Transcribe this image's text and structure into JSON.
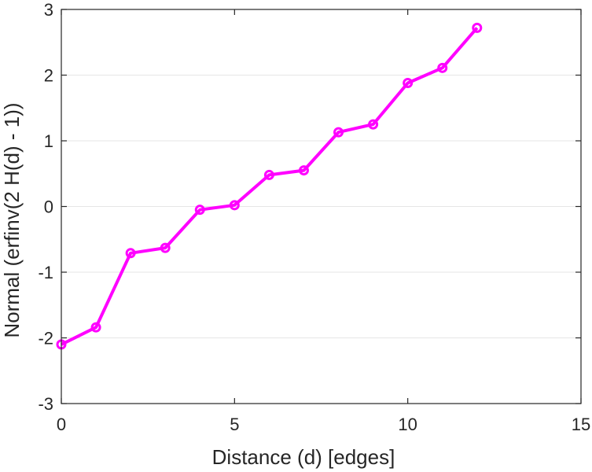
{
  "chart_data": {
    "type": "line",
    "title": "",
    "xlabel": "Distance (d) [edges]",
    "ylabel": "Normal (erfinv(2 H(d) - 1))",
    "xlim": [
      0,
      15
    ],
    "ylim": [
      -3,
      3
    ],
    "xticks": [
      0,
      5,
      10,
      15
    ],
    "yticks": [
      -3,
      -2,
      -1,
      0,
      1,
      2,
      3
    ],
    "grid": "horizontal",
    "legend": "none",
    "series": [
      {
        "color": "#ff00ff",
        "marker": "circle",
        "x": [
          0,
          1,
          2,
          3,
          4,
          5,
          6,
          7,
          8,
          9,
          10,
          11,
          12
        ],
        "y": [
          -2.1,
          -1.84,
          -0.71,
          -0.63,
          -0.05,
          0.02,
          0.48,
          0.55,
          1.13,
          1.25,
          1.88,
          2.11,
          2.72
        ]
      }
    ]
  }
}
